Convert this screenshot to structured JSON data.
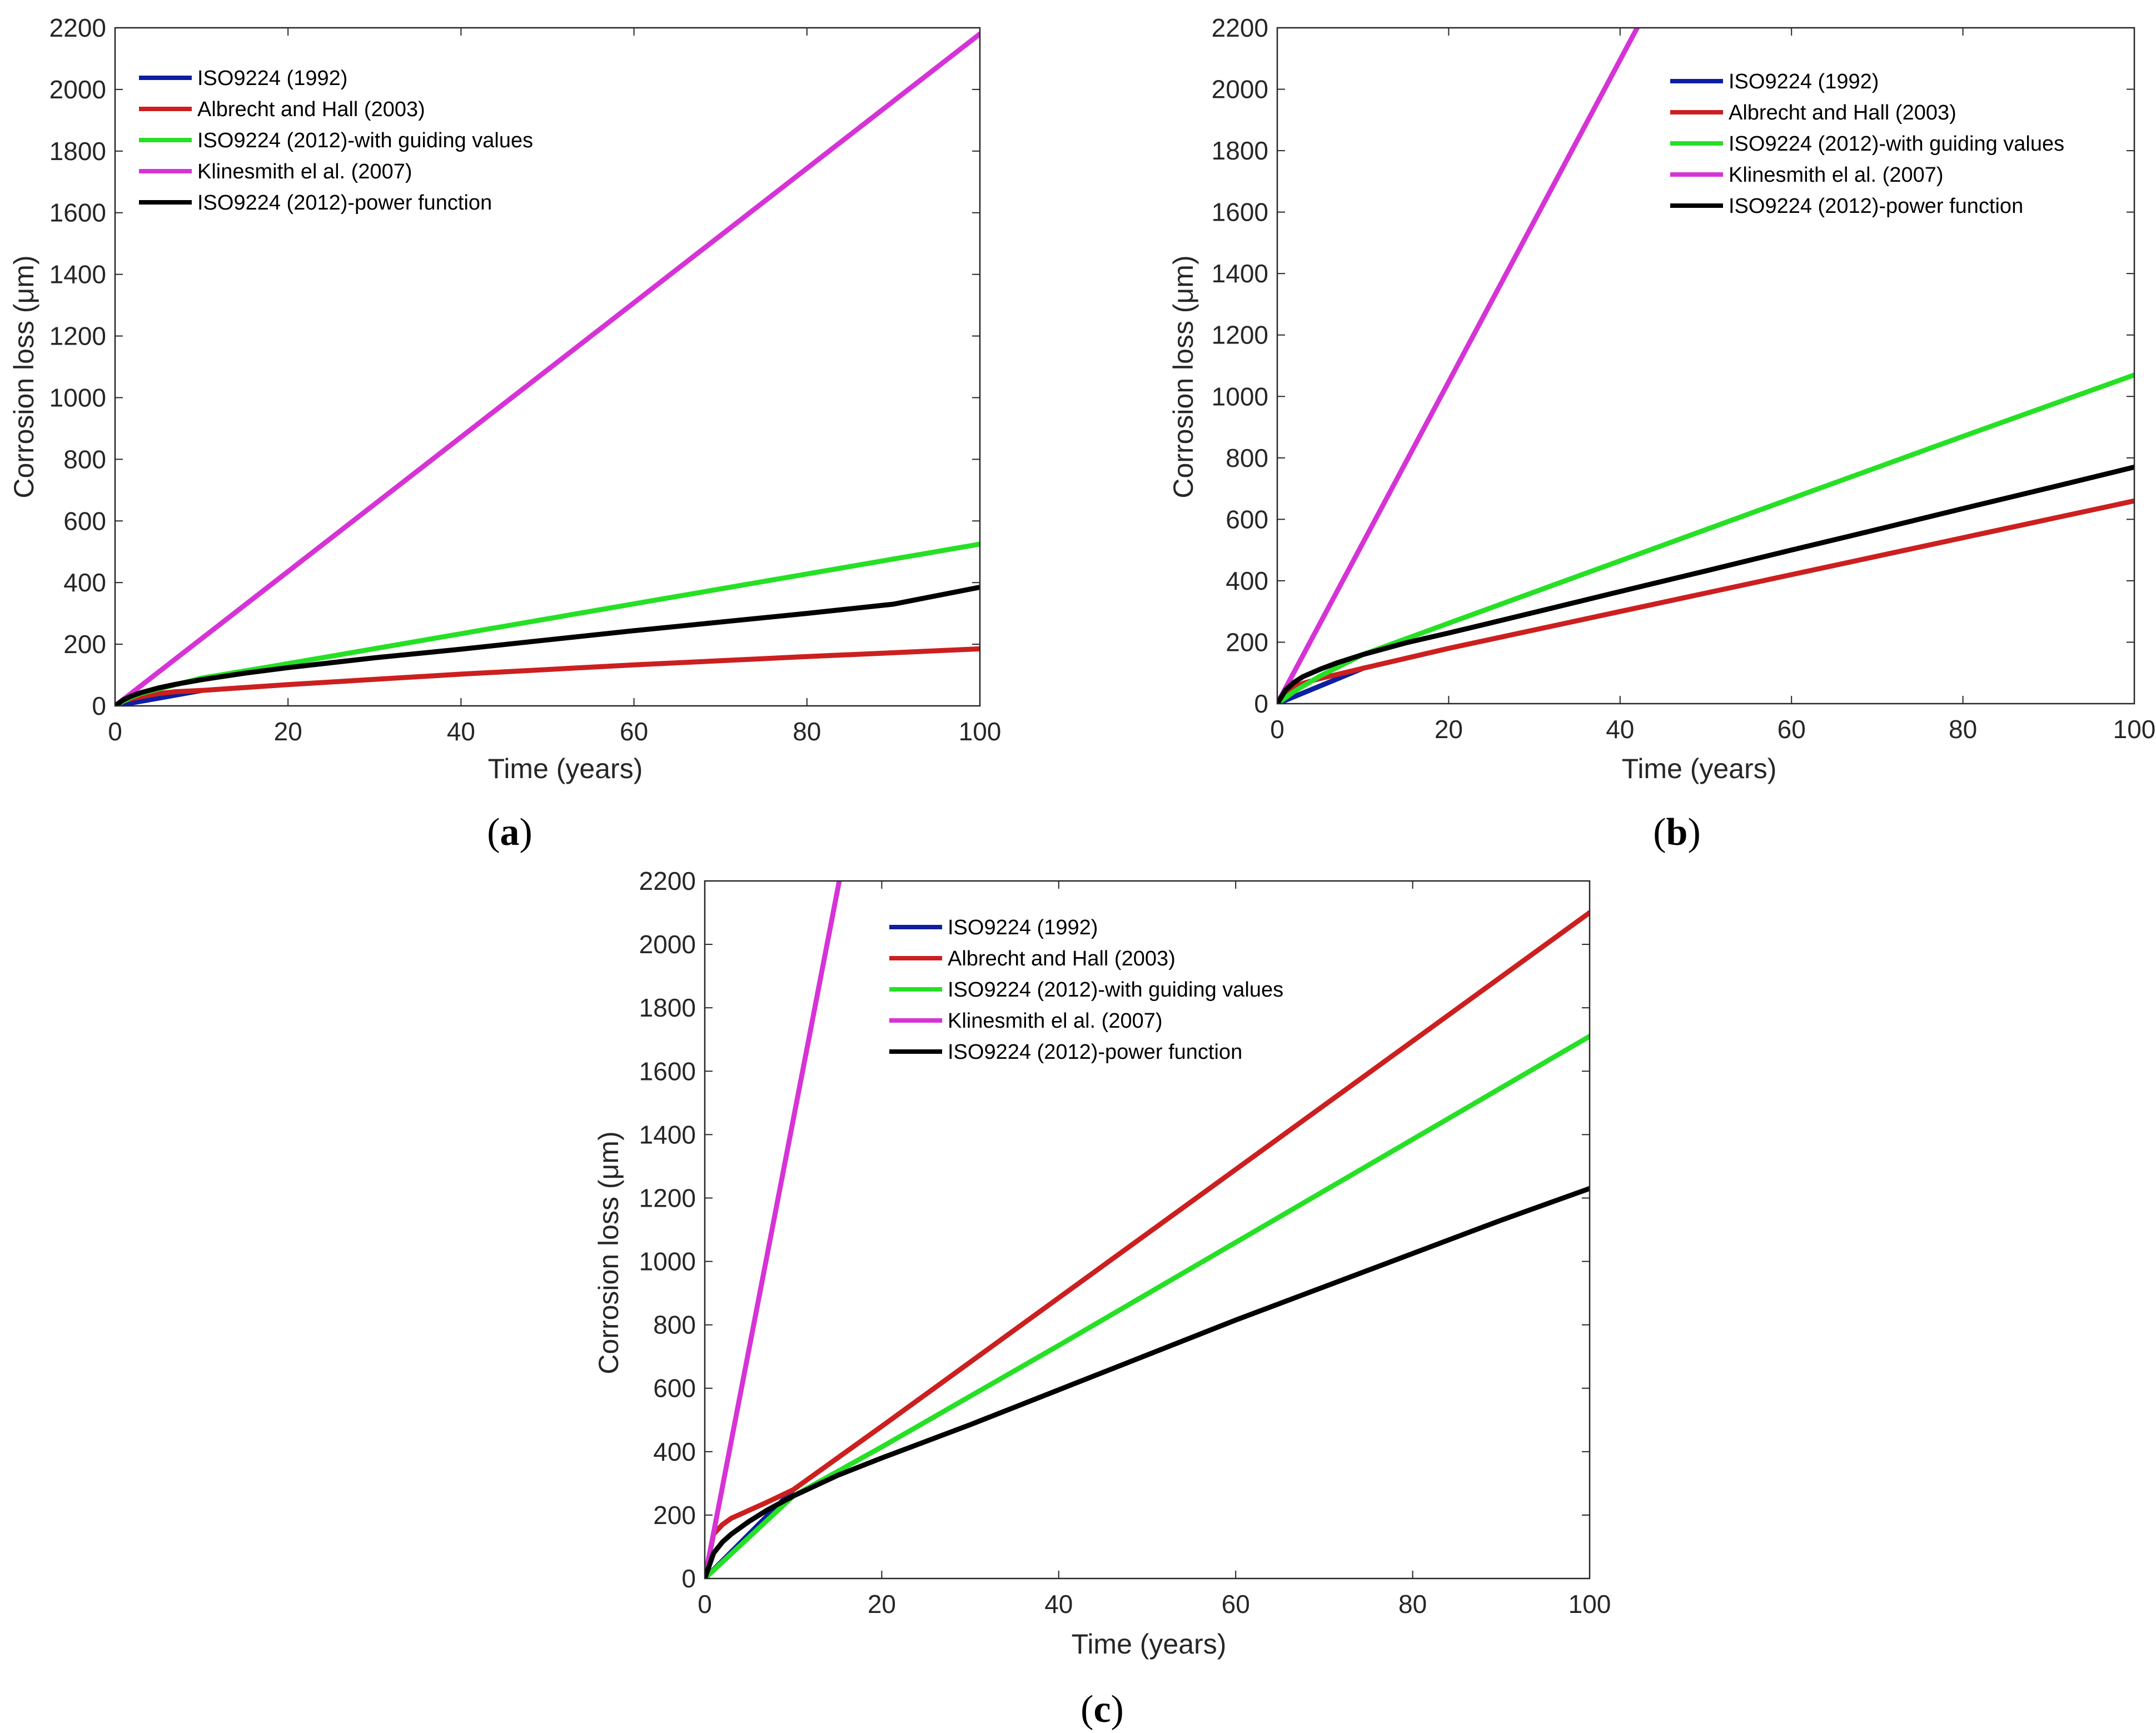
{
  "figure": {
    "panel_labels": [
      {
        "open": "(",
        "letter": "a",
        "close": ")"
      },
      {
        "open": "(",
        "letter": "b",
        "close": ")"
      },
      {
        "open": "(",
        "letter": "c",
        "close": ")"
      }
    ]
  },
  "colors": {
    "ISO9224 (1992)": "#0d1fa0",
    "Albrecht and Hall (2003)": "#cc1f1f",
    "ISO9224 (2012)-with guiding values": "#26e026",
    "Klinesmith el al. (2007)": "#d633d6",
    "ISO9224 (2012)-power function": "#000000"
  },
  "chart_data": [
    {
      "type": "line",
      "panel": "a",
      "xlabel": "Time (years)",
      "ylabel": "Corrosion loss (μm)",
      "xlim": [
        0,
        100
      ],
      "ylim": [
        0,
        2200
      ],
      "xticks": [
        0,
        20,
        40,
        60,
        80,
        100
      ],
      "yticks": [
        0,
        200,
        400,
        600,
        800,
        1000,
        1200,
        1400,
        1600,
        1800,
        2000,
        2200
      ],
      "legend_position": "top-left",
      "series": [
        {
          "name": "ISO9224 (1992)",
          "x": [
            0,
            10
          ],
          "y": [
            0,
            50
          ]
        },
        {
          "name": "Albrecht and Hall (2003)",
          "x": [
            0,
            1,
            2,
            3,
            5,
            7,
            10,
            20,
            40,
            60,
            80,
            100
          ],
          "y": [
            0,
            16,
            24,
            30,
            40,
            46,
            50,
            69,
            103,
            133,
            160,
            185
          ]
        },
        {
          "name": "ISO9224 (2012)-with guiding values",
          "x": [
            0,
            1,
            2,
            3,
            5,
            10,
            20,
            40,
            60,
            80,
            100
          ],
          "y": [
            0,
            16,
            30,
            40,
            55,
            90,
            137,
            234,
            331,
            428,
            525
          ]
        },
        {
          "name": "Klinesmith el al. (2007)",
          "x": [
            0,
            100
          ],
          "y": [
            0,
            2180
          ]
        },
        {
          "name": "ISO9224 (2012)-power function",
          "x": [
            0,
            1,
            2,
            3,
            5,
            7,
            10,
            15,
            20,
            30,
            40,
            50,
            60,
            70,
            80,
            90,
            100
          ],
          "y": [
            0,
            20,
            33,
            43,
            58,
            70,
            85,
            106,
            124,
            156,
            184,
            214,
            244,
            272,
            300,
            330,
            385
          ]
        }
      ]
    },
    {
      "type": "line",
      "panel": "b",
      "xlabel": "Time (years)",
      "ylabel": "Corrosion loss (μm)",
      "xlim": [
        0,
        100
      ],
      "ylim": [
        0,
        2200
      ],
      "xticks": [
        0,
        20,
        40,
        60,
        80,
        100
      ],
      "yticks": [
        0,
        200,
        400,
        600,
        800,
        1000,
        1200,
        1400,
        1600,
        1800,
        2000,
        2200
      ],
      "legend_position": "top-right",
      "series": [
        {
          "name": "ISO9224 (1992)",
          "x": [
            0,
            10
          ],
          "y": [
            0,
            115
          ]
        },
        {
          "name": "Albrecht and Hall (2003)",
          "x": [
            0,
            1,
            2,
            3,
            5,
            7,
            10,
            20,
            40,
            60,
            80,
            100
          ],
          "y": [
            0,
            40,
            55,
            66,
            82,
            95,
            115,
            180,
            300,
            420,
            540,
            660
          ]
        },
        {
          "name": "ISO9224 (2012)-with guiding values",
          "x": [
            0,
            2,
            5,
            10,
            20,
            40,
            60,
            80,
            100
          ],
          "y": [
            0,
            40,
            90,
            160,
            262,
            465,
            668,
            870,
            1070
          ]
        },
        {
          "name": "Klinesmith el al. (2007)",
          "x": [
            0,
            42
          ],
          "y": [
            0,
            2200
          ]
        },
        {
          "name": "ISO9224 (2012)-power function",
          "x": [
            0,
            1,
            2,
            3,
            5,
            7,
            10,
            15,
            20,
            30,
            40,
            50,
            60,
            70,
            80,
            90,
            100
          ],
          "y": [
            0,
            45,
            70,
            88,
            112,
            133,
            160,
            198,
            230,
            297,
            365,
            432,
            500,
            567,
            635,
            702,
            770
          ]
        }
      ]
    },
    {
      "type": "line",
      "panel": "c",
      "xlabel": "Time (years)",
      "ylabel": "Corrosion loss (μm)",
      "xlim": [
        0,
        100
      ],
      "ylim": [
        0,
        2200
      ],
      "xticks": [
        0,
        20,
        40,
        60,
        80,
        100
      ],
      "yticks": [
        0,
        200,
        400,
        600,
        800,
        1000,
        1200,
        1400,
        1600,
        1800,
        2000,
        2200
      ],
      "legend_position": "top-center",
      "series": [
        {
          "name": "ISO9224 (1992)",
          "x": [
            0,
            10
          ],
          "y": [
            0,
            280
          ]
        },
        {
          "name": "Albrecht and Hall (2003)",
          "x": [
            0,
            1,
            2,
            3,
            5,
            7,
            10,
            20,
            40,
            60,
            80,
            100
          ],
          "y": [
            0,
            140,
            170,
            190,
            215,
            240,
            280,
            480,
            885,
            1290,
            1695,
            2100
          ]
        },
        {
          "name": "ISO9224 (2012)-with guiding values",
          "x": [
            0,
            10,
            20,
            40,
            60,
            80,
            100
          ],
          "y": [
            0,
            260,
            415,
            735,
            1060,
            1385,
            1710
          ]
        },
        {
          "name": "Klinesmith el al. (2007)",
          "x": [
            0,
            15.2
          ],
          "y": [
            0,
            2200
          ]
        },
        {
          "name": "ISO9224 (2012)-power function",
          "x": [
            0,
            1,
            2,
            3,
            5,
            7,
            10,
            15,
            20,
            30,
            40,
            50,
            60,
            70,
            80,
            90,
            100
          ],
          "y": [
            0,
            80,
            115,
            140,
            180,
            215,
            260,
            325,
            380,
            485,
            595,
            705,
            815,
            920,
            1025,
            1130,
            1230
          ]
        }
      ]
    }
  ]
}
